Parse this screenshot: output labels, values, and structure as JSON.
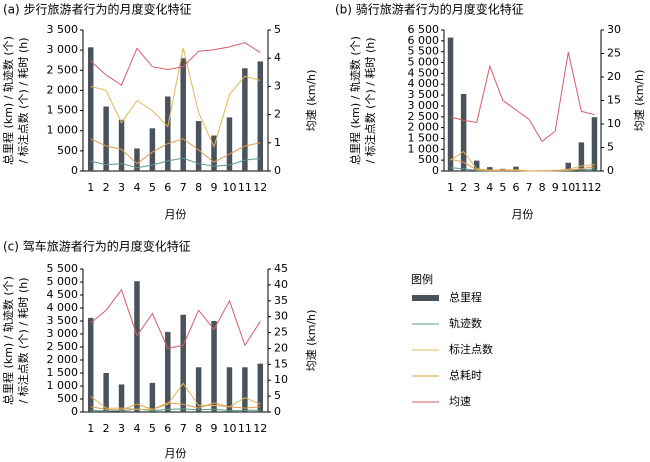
{
  "colors": {
    "bar": "#4a535b",
    "track": "#5a9a8c",
    "annotation": "#e4b657",
    "time": "#e49a4f",
    "speed": "#d65b67"
  },
  "legend": {
    "title": "图例",
    "items": [
      "总里程",
      "轨迹数",
      "标注点数",
      "总耗时",
      "均速"
    ]
  },
  "chart_data": [
    {
      "id": "a",
      "type": "bar",
      "title": "(a) 步行旅游者行为的月度变化特征",
      "xlabel": "月份",
      "ylabel_line1": "总里程 (km) / 轨迹数 (个)",
      "ylabel_line2": "/ 标注点数 (个) / 耗时 (h)",
      "y2label": "均速 (km/h)",
      "categories": [
        "1",
        "2",
        "3",
        "4",
        "5",
        "6",
        "7",
        "8",
        "9",
        "10",
        "11",
        "12"
      ],
      "ylim": [
        0,
        3500
      ],
      "yticks": [
        "0",
        "500",
        "1 000",
        "1 500",
        "2 000",
        "2 500",
        "3 000",
        "3 500"
      ],
      "y2lim": [
        0,
        5
      ],
      "y2ticks": [
        "0",
        "1",
        "2",
        "3",
        "4",
        "5"
      ],
      "series": [
        {
          "name": "总里程",
          "axis": "left",
          "type": "bar",
          "values": [
            3070,
            1600,
            1270,
            560,
            1060,
            1850,
            2800,
            1240,
            880,
            1330,
            2550,
            2720
          ]
        },
        {
          "name": "轨迹数",
          "axis": "left",
          "type": "line",
          "values": [
            240,
            160,
            180,
            80,
            150,
            250,
            320,
            180,
            120,
            150,
            270,
            310
          ]
        },
        {
          "name": "标注点数",
          "axis": "left",
          "type": "line",
          "values": [
            2100,
            2000,
            1200,
            1750,
            1500,
            1100,
            3050,
            1450,
            600,
            1900,
            2350,
            2250
          ]
        },
        {
          "name": "总耗时",
          "axis": "left",
          "type": "line",
          "values": [
            800,
            620,
            540,
            180,
            470,
            680,
            800,
            520,
            220,
            420,
            620,
            700
          ]
        },
        {
          "name": "均速",
          "axis": "right",
          "type": "line",
          "values": [
            3.9,
            3.4,
            3.05,
            4.35,
            3.7,
            3.6,
            3.7,
            4.25,
            4.3,
            4.4,
            4.55,
            4.2
          ]
        }
      ]
    },
    {
      "id": "b",
      "type": "bar",
      "title": "(b) 骑行旅游者行为的月度变化特征",
      "xlabel": "月份",
      "ylabel_line1": "总里程 (km) / 轨迹数 (个)",
      "ylabel_line2": "/ 标注点数 (个) / 耗时 (h)",
      "y2label": "均速 (km/h)",
      "categories": [
        "1",
        "2",
        "3",
        "4",
        "5",
        "6",
        "7",
        "8",
        "9",
        "10",
        "11",
        "12"
      ],
      "ylim": [
        0,
        6500
      ],
      "yticks": [
        "0",
        "500",
        "1 000",
        "1 500",
        "2 000",
        "2 500",
        "3 000",
        "3 500",
        "4 000",
        "4 500",
        "5 000",
        "5 500",
        "6 000",
        "6 500"
      ],
      "y2lim": [
        0,
        30
      ],
      "y2ticks": [
        "0",
        "5",
        "10",
        "15",
        "20",
        "25",
        "30"
      ],
      "series": [
        {
          "name": "总里程",
          "axis": "left",
          "type": "bar",
          "values": [
            6150,
            3550,
            480,
            180,
            100,
            200,
            0,
            20,
            50,
            380,
            1320,
            2480
          ]
        },
        {
          "name": "轨迹数",
          "axis": "left",
          "type": "line",
          "values": [
            150,
            100,
            20,
            10,
            10,
            15,
            0,
            2,
            5,
            20,
            50,
            90
          ]
        },
        {
          "name": "标注点数",
          "axis": "left",
          "type": "line",
          "values": [
            500,
            900,
            100,
            40,
            50,
            60,
            0,
            10,
            20,
            80,
            230,
            300
          ]
        },
        {
          "name": "总耗时",
          "axis": "left",
          "type": "line",
          "values": [
            550,
            400,
            50,
            20,
            20,
            25,
            0,
            5,
            10,
            30,
            110,
            200
          ]
        },
        {
          "name": "均速",
          "axis": "right",
          "type": "line",
          "values": [
            11.5,
            10.8,
            10.3,
            22.3,
            15,
            13,
            11,
            6.3,
            8.5,
            25.3,
            12.7,
            12
          ]
        }
      ]
    },
    {
      "id": "c",
      "type": "bar",
      "title": "(c) 驾车旅游者行为的月度变化特征",
      "xlabel": "月份",
      "ylabel_line1": "总里程 (km) / 轨迹数 (个)",
      "ylabel_line2": "/ 标注点数 (个) / 耗时 (h)",
      "y2label": "均速 (km/h)",
      "categories": [
        "1",
        "2",
        "3",
        "4",
        "5",
        "6",
        "7",
        "8",
        "9",
        "10",
        "11",
        "12"
      ],
      "ylim": [
        0,
        5500
      ],
      "yticks": [
        "0",
        "500",
        "1 000",
        "1 500",
        "2 000",
        "2 500",
        "3 000",
        "3 500",
        "4 000",
        "4 500",
        "5 000",
        "5 500"
      ],
      "y2lim": [
        0,
        45
      ],
      "y2ticks": [
        "0",
        "5",
        "10",
        "15",
        "20",
        "25",
        "30",
        "35",
        "40",
        "45"
      ],
      "series": [
        {
          "name": "总里程",
          "axis": "left",
          "type": "bar",
          "values": [
            3620,
            1500,
            1060,
            5030,
            1120,
            3080,
            3740,
            1720,
            3500,
            1720,
            1720,
            1860
          ]
        },
        {
          "name": "轨迹数",
          "axis": "left",
          "type": "line",
          "values": [
            60,
            40,
            40,
            120,
            50,
            100,
            120,
            80,
            110,
            50,
            60,
            70
          ]
        },
        {
          "name": "标注点数",
          "axis": "left",
          "type": "line",
          "values": [
            600,
            150,
            150,
            100,
            100,
            300,
            1100,
            250,
            250,
            200,
            550,
            300
          ]
        },
        {
          "name": "总耗时",
          "axis": "left",
          "type": "line",
          "values": [
            200,
            100,
            80,
            300,
            100,
            350,
            300,
            150,
            350,
            200,
            150,
            200
          ]
        },
        {
          "name": "均速",
          "axis": "right",
          "type": "line",
          "values": [
            28,
            32,
            38.5,
            24,
            31,
            20,
            21,
            32,
            26,
            35,
            21,
            28.5
          ]
        }
      ]
    }
  ]
}
